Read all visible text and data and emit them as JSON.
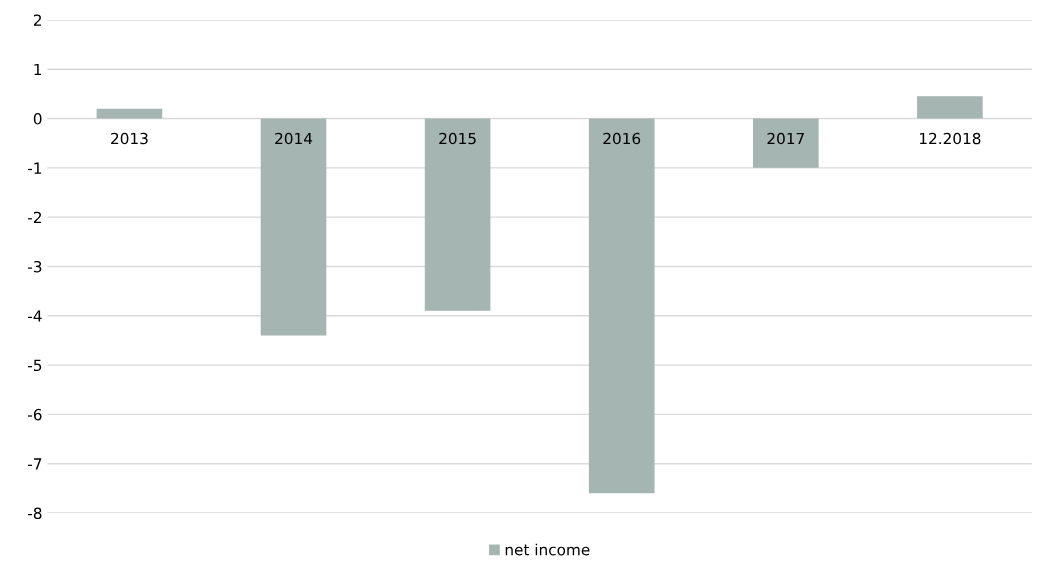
{
  "chart_data": {
    "type": "bar",
    "categories": [
      "2013",
      "2014",
      "2015",
      "2016",
      "2017",
      "12.2018"
    ],
    "series": [
      {
        "name": "net income",
        "color": "#a5b5b2",
        "values": [
          0.2,
          -4.4,
          -3.9,
          -7.6,
          -1.0,
          0.45
        ]
      }
    ],
    "ylim": [
      -8,
      2
    ],
    "yticks": [
      -8,
      -7,
      -6,
      -5,
      -4,
      -3,
      -2,
      -1,
      0,
      1,
      2
    ],
    "grid": "y",
    "legend": "bottom"
  }
}
